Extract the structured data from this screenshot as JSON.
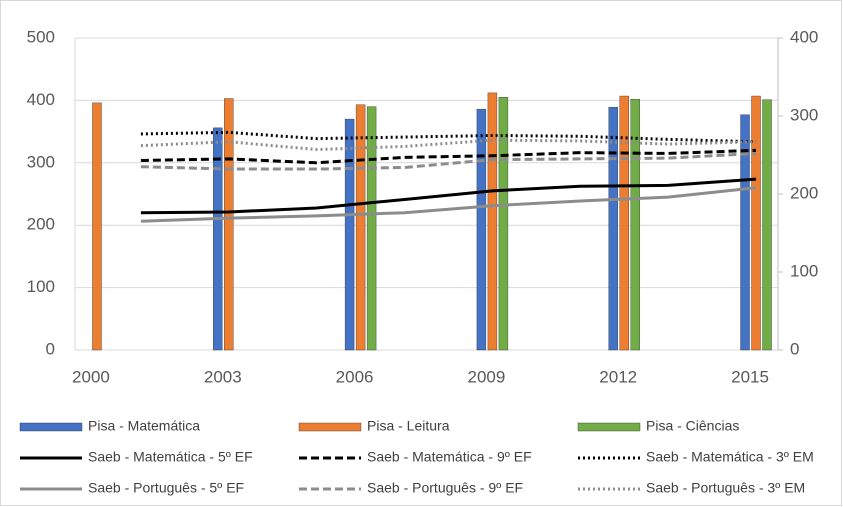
{
  "chart_data": {
    "type": "combo",
    "xlim": [
      1999.5,
      2015.5
    ],
    "xticks": [
      2000,
      2003,
      2006,
      2009,
      2012,
      2015
    ],
    "ylim": [
      0,
      500
    ],
    "yticks": [
      0,
      100,
      200,
      300,
      400,
      500
    ],
    "y2lim": [
      0,
      400
    ],
    "y2ticks": [
      0,
      100,
      200,
      300,
      400
    ],
    "grid": true,
    "series": [
      {
        "name": "Pisa - Matemática",
        "type": "bar",
        "color": "#4472c4",
        "x": [
          2000,
          2003,
          2006,
          2009,
          2012,
          2015
        ],
        "values": [
          null,
          356,
          370,
          386,
          389,
          377
        ]
      },
      {
        "name": "Pisa - Leitura",
        "type": "bar",
        "color": "#ed7d31",
        "x": [
          2000,
          2003,
          2006,
          2009,
          2012,
          2015
        ],
        "values": [
          396,
          403,
          393,
          412,
          407,
          407
        ]
      },
      {
        "name": "Pisa - Ciências",
        "type": "bar",
        "color": "#70ad47",
        "x": [
          2000,
          2003,
          2006,
          2009,
          2012,
          2015
        ],
        "values": [
          null,
          null,
          390,
          405,
          402,
          401
        ]
      },
      {
        "name": "Saeb - Matemática - 5º EF",
        "type": "line",
        "axis": "y2",
        "dash": "solid",
        "color": "#000000",
        "x": [
          2001,
          2003,
          2005,
          2007,
          2009,
          2011,
          2013,
          2015
        ],
        "values": [
          176,
          177,
          182,
          193,
          204,
          210,
          211,
          219
        ]
      },
      {
        "name": "Saeb - Matemática - 9º EF",
        "type": "line",
        "axis": "y2",
        "dash": "dashed",
        "color": "#000000",
        "x": [
          2001,
          2003,
          2005,
          2007,
          2009,
          2011,
          2013,
          2015
        ],
        "values": [
          243,
          245,
          240,
          247,
          249,
          253,
          252,
          256
        ]
      },
      {
        "name": "Saeb - Matemática - 3º EM",
        "type": "line",
        "axis": "y2",
        "dash": "dotted",
        "color": "#000000",
        "x": [
          2001,
          2003,
          2005,
          2007,
          2009,
          2011,
          2013,
          2015
        ],
        "values": [
          277,
          279,
          271,
          273,
          275,
          274,
          270,
          267
        ]
      },
      {
        "name": "Saeb - Português - 5º EF",
        "type": "line",
        "axis": "y2",
        "dash": "solid",
        "color": "#8c8c8c",
        "x": [
          2001,
          2003,
          2005,
          2007,
          2009,
          2011,
          2013,
          2015
        ],
        "values": [
          165,
          169,
          172,
          176,
          185,
          191,
          196,
          208
        ]
      },
      {
        "name": "Saeb - Português - 9º EF",
        "type": "line",
        "axis": "y2",
        "dash": "dashed",
        "color": "#8c8c8c",
        "x": [
          2001,
          2003,
          2005,
          2007,
          2009,
          2011,
          2013,
          2015
        ],
        "values": [
          235,
          232,
          232,
          234,
          244,
          245,
          246,
          252
        ]
      },
      {
        "name": "Saeb - Português - 3º EM",
        "type": "line",
        "axis": "y2",
        "dash": "dotted",
        "color": "#8c8c8c",
        "x": [
          2001,
          2003,
          2005,
          2007,
          2009,
          2011,
          2013,
          2015
        ],
        "values": [
          262,
          267,
          257,
          261,
          269,
          268,
          264,
          267
        ]
      }
    ]
  }
}
